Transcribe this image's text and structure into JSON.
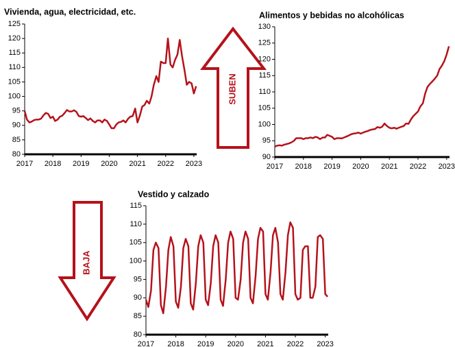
{
  "chart_data": [
    {
      "type": "line",
      "title": "Vivienda, agua, electricidad, etc.",
      "x": [
        2017,
        2017.08,
        2017.17,
        2017.25,
        2017.33,
        2017.42,
        2017.5,
        2017.58,
        2017.67,
        2017.75,
        2017.83,
        2017.92,
        2018,
        2018.08,
        2018.17,
        2018.25,
        2018.33,
        2018.42,
        2018.5,
        2018.58,
        2018.67,
        2018.75,
        2018.83,
        2018.92,
        2019,
        2019.08,
        2019.17,
        2019.25,
        2019.33,
        2019.42,
        2019.5,
        2019.58,
        2019.67,
        2019.75,
        2019.83,
        2019.92,
        2020,
        2020.08,
        2020.17,
        2020.25,
        2020.33,
        2020.42,
        2020.5,
        2020.58,
        2020.67,
        2020.75,
        2020.83,
        2020.92,
        2021,
        2021.08,
        2021.17,
        2021.25,
        2021.33,
        2021.42,
        2021.5,
        2021.58,
        2021.67,
        2021.75,
        2021.83,
        2021.92,
        2022,
        2022.08,
        2022.17,
        2022.25,
        2022.33,
        2022.42,
        2022.5,
        2022.58,
        2022.67,
        2022.75,
        2022.83,
        2022.92,
        2023,
        2023.08
      ],
      "series": [
        {
          "color": "#b5121b",
          "values": [
            95,
            92,
            91,
            91.3,
            91.8,
            92,
            92,
            92.3,
            93.5,
            94.3,
            94,
            92.5,
            93,
            91.5,
            92,
            93,
            93.3,
            94.3,
            95.3,
            94.8,
            94.8,
            95.2,
            94.7,
            93.2,
            93,
            93.2,
            92.5,
            91.8,
            92.4,
            91.5,
            91,
            91.7,
            91.7,
            91,
            92,
            91.5,
            90.3,
            89,
            89,
            90.3,
            91,
            91.2,
            91.7,
            91,
            92.3,
            93,
            93.2,
            95.8,
            91,
            93.2,
            96.5,
            97,
            98.5,
            97.5,
            100,
            104,
            107,
            105,
            112,
            111.5,
            111.5,
            120,
            111,
            110,
            112.5,
            114.5,
            119.5,
            114,
            109,
            104,
            105,
            104.5,
            101,
            103.5
          ]
        }
      ],
      "xlim": [
        2017,
        2023.1
      ],
      "xticks": [
        2017,
        2018,
        2019,
        2020,
        2021,
        2022,
        2023
      ],
      "ylim": [
        80,
        125
      ],
      "yticks": [
        80,
        85,
        90,
        95,
        100,
        105,
        110,
        115,
        120,
        125
      ]
    },
    {
      "type": "line",
      "title": "Alimentos y bebidas no alcohólicas",
      "x": [
        2017,
        2017.08,
        2017.17,
        2017.25,
        2017.33,
        2017.42,
        2017.5,
        2017.58,
        2017.67,
        2017.75,
        2017.83,
        2017.92,
        2018,
        2018.08,
        2018.17,
        2018.25,
        2018.33,
        2018.42,
        2018.5,
        2018.58,
        2018.67,
        2018.75,
        2018.83,
        2018.92,
        2019,
        2019.08,
        2019.17,
        2019.25,
        2019.33,
        2019.42,
        2019.5,
        2019.58,
        2019.67,
        2019.75,
        2019.83,
        2019.92,
        2020,
        2020.08,
        2020.17,
        2020.25,
        2020.33,
        2020.42,
        2020.5,
        2020.58,
        2020.67,
        2020.75,
        2020.83,
        2020.92,
        2021,
        2021.08,
        2021.17,
        2021.25,
        2021.33,
        2021.42,
        2021.5,
        2021.58,
        2021.67,
        2021.75,
        2021.83,
        2021.92,
        2022,
        2022.08,
        2022.17,
        2022.25,
        2022.33,
        2022.42,
        2022.5,
        2022.58,
        2022.67,
        2022.75,
        2022.83,
        2022.92,
        2023,
        2023.08
      ],
      "series": [
        {
          "color": "#b5121b",
          "values": [
            93.2,
            93.5,
            93.6,
            93.5,
            93.8,
            94,
            94.2,
            94.5,
            95,
            95.8,
            95.8,
            95.8,
            95.5,
            95.8,
            95.8,
            96,
            95.8,
            96.2,
            96,
            95.5,
            96,
            96,
            96.8,
            96.5,
            96.2,
            95.5,
            95.8,
            95.8,
            95.7,
            96,
            96.3,
            96.6,
            97,
            97.2,
            97.3,
            97.5,
            97.2,
            97.5,
            97.8,
            98,
            98.3,
            98.5,
            98.6,
            99.2,
            99,
            99.3,
            100.3,
            99.5,
            99,
            98.8,
            99,
            98.7,
            99,
            99.3,
            99.5,
            100.3,
            100.2,
            101.5,
            102.5,
            103.3,
            104,
            105.5,
            106.5,
            109.5,
            111.5,
            112.5,
            113.2,
            114,
            115,
            117,
            118,
            119.5,
            121.5,
            124
          ]
        }
      ],
      "xlim": [
        2017,
        2023.1
      ],
      "xticks": [
        2017,
        2018,
        2019,
        2020,
        2021,
        2022,
        2023
      ],
      "ylim": [
        90,
        130
      ],
      "yticks": [
        90,
        95,
        100,
        105,
        110,
        115,
        120,
        125,
        130
      ]
    },
    {
      "type": "line",
      "title": "Vestido y calzado",
      "x": [
        2017,
        2017.08,
        2017.17,
        2017.25,
        2017.33,
        2017.42,
        2017.5,
        2017.58,
        2017.67,
        2017.75,
        2017.83,
        2017.92,
        2018,
        2018.08,
        2018.17,
        2018.25,
        2018.33,
        2018.42,
        2018.5,
        2018.58,
        2018.67,
        2018.75,
        2018.83,
        2018.92,
        2019,
        2019.08,
        2019.17,
        2019.25,
        2019.33,
        2019.42,
        2019.5,
        2019.58,
        2019.67,
        2019.75,
        2019.83,
        2019.92,
        2020,
        2020.08,
        2020.17,
        2020.25,
        2020.33,
        2020.42,
        2020.5,
        2020.58,
        2020.67,
        2020.75,
        2020.83,
        2020.92,
        2021,
        2021.08,
        2021.17,
        2021.25,
        2021.33,
        2021.42,
        2021.5,
        2021.58,
        2021.67,
        2021.75,
        2021.83,
        2021.92,
        2022,
        2022.08,
        2022.17,
        2022.25,
        2022.33,
        2022.42,
        2022.5,
        2022.58,
        2022.67,
        2022.75,
        2022.83,
        2022.92,
        2023,
        2023.08
      ],
      "series": [
        {
          "color": "#b5121b",
          "values": [
            89.5,
            87.5,
            92,
            103,
            105,
            103.5,
            88,
            85.8,
            93,
            103,
            106.5,
            104,
            89,
            87.3,
            93,
            103.5,
            106,
            104,
            88.5,
            86.8,
            94,
            104,
            107,
            105,
            89.5,
            88,
            94,
            104,
            107,
            105,
            89.5,
            87.8,
            95,
            105,
            108,
            106,
            90,
            89.5,
            95,
            105,
            108,
            106,
            90,
            88.5,
            96,
            106,
            109,
            108,
            91,
            89.5,
            97,
            107,
            109,
            105,
            91,
            89.5,
            97,
            107,
            110.5,
            109,
            91,
            89.5,
            90,
            103,
            104,
            104,
            90,
            90,
            93,
            106.5,
            107,
            106,
            91,
            90.3
          ]
        }
      ],
      "xlim": [
        2017,
        2023.1
      ],
      "xticks": [
        2017,
        2018,
        2019,
        2020,
        2021,
        2022,
        2023
      ],
      "ylim": [
        80,
        115
      ],
      "yticks": [
        80,
        85,
        90,
        95,
        100,
        105,
        110,
        115
      ]
    }
  ],
  "arrows": [
    {
      "label": "SUBEN"
    },
    {
      "label": "BAJA"
    }
  ]
}
